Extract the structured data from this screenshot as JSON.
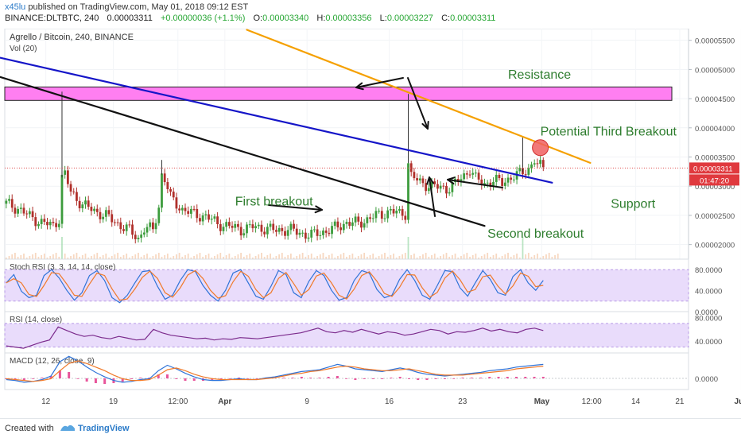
{
  "header": {
    "author": "x45lu",
    "published": "published on TradingView.com, May 01, 2018 09:12 EST",
    "symbol": "BINANCE:DLTBTC, 240",
    "last": "0.00003311",
    "change": "+0.00000036 (+1.1%)",
    "o_label": "O:",
    "o_value": "0.00003340",
    "h_label": "H:",
    "h_value": "0.00003356",
    "l_label": "L:",
    "l_value": "0.00003227",
    "c_label": "C:",
    "c_value": "0.00003311"
  },
  "footer": {
    "made": "Created with",
    "brand": "TradingView"
  },
  "chart_data": {
    "type": "candlestick",
    "title": "Agrello / Bitcoin, 240, BINANCE",
    "volume_label": "Vol (20)",
    "y_ticks": [
      "0.00005500",
      "0.00005000",
      "0.00004500",
      "0.00004000",
      "0.00003500",
      "0.00003000",
      "0.00002500",
      "0.00002000"
    ],
    "y_range": [
      1.75e-05,
      5.7e-05
    ],
    "price_tag": "0.00003311",
    "time_tag": "01:47:20",
    "last_price": 3.311e-05,
    "x_ticks": [
      "12",
      "19",
      "12:00",
      "Apr",
      "9",
      "16",
      "23",
      "May",
      "12:00",
      "14",
      "21",
      "Jun"
    ],
    "close_path": [
      [
        0,
        2.7e-05
      ],
      [
        4,
        2.62e-05
      ],
      [
        8,
        2.48e-05
      ],
      [
        12,
        2.38e-05
      ],
      [
        16,
        2.32e-05
      ],
      [
        18,
        2.45e-05
      ],
      [
        19,
        3.15e-05
      ],
      [
        20,
        3.2e-05
      ],
      [
        22,
        2.9e-05
      ],
      [
        26,
        2.68e-05
      ],
      [
        30,
        2.58e-05
      ],
      [
        34,
        2.49e-05
      ],
      [
        38,
        2.36e-05
      ],
      [
        42,
        2.24e-05
      ],
      [
        45,
        2.1e-05
      ],
      [
        47,
        2.28e-05
      ],
      [
        50,
        2.25e-05
      ],
      [
        52,
        2.65e-05
      ],
      [
        53,
        3.2e-05
      ],
      [
        54,
        3.12e-05
      ],
      [
        56,
        2.8e-05
      ],
      [
        60,
        2.6e-05
      ],
      [
        64,
        2.52e-05
      ],
      [
        68,
        2.48e-05
      ],
      [
        72,
        2.36e-05
      ],
      [
        76,
        2.31e-05
      ],
      [
        80,
        2.26e-05
      ],
      [
        84,
        2.3e-05
      ],
      [
        88,
        2.28e-05
      ],
      [
        92,
        2.24e-05
      ],
      [
        96,
        2.26e-05
      ],
      [
        100,
        2.2e-05
      ],
      [
        104,
        2.16e-05
      ],
      [
        108,
        2.22e-05
      ],
      [
        112,
        2.28e-05
      ],
      [
        116,
        2.38e-05
      ],
      [
        120,
        2.36e-05
      ],
      [
        124,
        2.46e-05
      ],
      [
        128,
        2.52e-05
      ],
      [
        131,
        2.58e-05
      ],
      [
        134,
        2.52e-05
      ],
      [
        136,
        2.54e-05
      ],
      [
        137,
        3.4e-05
      ],
      [
        138,
        3.18e-05
      ],
      [
        141,
        3.06e-05
      ],
      [
        144,
        3.02e-05
      ],
      [
        147,
        2.98e-05
      ],
      [
        150,
        2.96e-05
      ],
      [
        153,
        3.04e-05
      ],
      [
        156,
        3.18e-05
      ],
      [
        158,
        3.3e-05
      ],
      [
        160,
        3.12e-05
      ],
      [
        163,
        3.04e-05
      ],
      [
        166,
        3.1e-05
      ],
      [
        169,
        3.06e-05
      ],
      [
        172,
        3.16e-05
      ],
      [
        174,
        3.18e-05
      ],
      [
        176,
        3.24e-05
      ],
      [
        178,
        3.3e-05
      ],
      [
        180,
        3.45e-05
      ],
      [
        181,
        3.35e-05
      ],
      [
        183,
        3.32e-05
      ]
    ],
    "spikes": [
      [
        19,
        4.62e-05
      ],
      [
        53,
        3.45e-05
      ],
      [
        137,
        4.58e-05
      ],
      [
        176,
        3.86e-05
      ]
    ],
    "volume_spikes": [
      19,
      137,
      176
    ],
    "zone": {
      "label": "resistance-zone",
      "y_top": 4.7e-05,
      "y_bottom": 4.47e-05,
      "color": "#ff7ff1"
    },
    "lines": [
      {
        "name": "blue-trendline",
        "color": "#1515c8",
        "from": [
          -2,
          5.2e-05
        ],
        "to": [
          186,
          3.06e-05
        ]
      },
      {
        "name": "black-trendline",
        "color": "#111111",
        "from": [
          -2,
          4.87e-05
        ],
        "to": [
          163,
          2.32e-05
        ]
      },
      {
        "name": "orange-trendline",
        "color": "#f5a000",
        "from": [
          82,
          5.68e-05
        ],
        "to": [
          199,
          3.4e-05
        ]
      }
    ],
    "marker": {
      "x": 182,
      "y": 3.66e-05,
      "color": "#f06060"
    },
    "annotations": [
      {
        "text": "Resistance",
        "x": 171,
        "y": 4.84e-05
      },
      {
        "text": "Potential Third Breakout",
        "x": 182,
        "y": 3.87e-05
      },
      {
        "text": "First breakout",
        "x": 78,
        "y": 2.67e-05
      },
      {
        "text": "Support",
        "x": 206,
        "y": 2.63e-05
      },
      {
        "text": "Second breakout",
        "x": 164,
        "y": 2.12e-05
      }
    ],
    "indicators": {
      "stoch": {
        "label": "Stoch RSI (3, 3, 14, 14, close)",
        "ticks": [
          "80.0000",
          "40.0000",
          "0.0000"
        ],
        "band": [
          80,
          20
        ],
        "k": [
          55,
          72,
          38,
          25,
          30,
          70,
          82,
          65,
          40,
          20,
          35,
          70,
          80,
          60,
          25,
          15,
          30,
          55,
          78,
          80,
          48,
          22,
          30,
          60,
          82,
          78,
          50,
          30,
          18,
          40,
          75,
          82,
          55,
          28,
          22,
          48,
          80,
          72,
          35,
          25,
          58,
          80,
          70,
          40,
          20,
          25,
          60,
          80,
          75,
          42,
          25,
          30,
          62,
          82,
          60,
          30,
          22,
          50,
          80,
          78,
          45,
          28,
          55,
          80,
          62,
          35,
          30,
          68,
          82,
          55,
          40,
          60
        ]
      },
      "rsi": {
        "label": "RSI (14, close)",
        "ticks": [
          "80.0000",
          "40.0000"
        ],
        "band": [
          70,
          30
        ],
        "values": [
          32,
          30,
          28,
          33,
          38,
          42,
          64,
          58,
          52,
          48,
          50,
          46,
          44,
          48,
          45,
          42,
          43,
          60,
          54,
          50,
          48,
          46,
          44,
          45,
          42,
          44,
          43,
          46,
          45,
          44,
          46,
          48,
          50,
          52,
          54,
          58,
          62,
          56,
          54,
          58,
          55,
          60,
          56,
          52,
          56,
          54,
          50,
          52,
          56,
          60,
          58,
          52,
          56,
          55,
          58,
          62,
          57,
          60,
          56,
          54,
          60,
          62,
          58
        ]
      },
      "macd": {
        "label": "MACD (12, 26, close, 9)",
        "ticks": [
          "0.0000"
        ],
        "macd_line": [
          -0.2,
          -0.3,
          -0.5,
          -0.4,
          -0.2,
          0.2,
          1.8,
          2.4,
          1.9,
          1.2,
          0.6,
          0.1,
          -0.3,
          -0.5,
          -0.4,
          -0.2,
          -0.1,
          0.8,
          1.4,
          1.0,
          0.5,
          0.1,
          -0.2,
          -0.3,
          -0.3,
          -0.2,
          -0.1,
          -0.2,
          -0.2,
          0.0,
          0.1,
          0.3,
          0.5,
          0.7,
          0.8,
          0.9,
          1.2,
          1.5,
          1.3,
          1.0,
          0.9,
          0.8,
          0.7,
          0.9,
          1.1,
          0.9,
          0.6,
          0.4,
          0.3,
          0.2,
          0.3,
          0.4,
          0.5,
          0.6,
          0.8,
          0.9,
          1.0,
          1.2,
          1.3,
          1.4,
          1.5
        ],
        "signal_line": [
          -0.1,
          -0.2,
          -0.3,
          -0.4,
          -0.3,
          -0.1,
          0.8,
          1.6,
          1.9,
          1.6,
          1.2,
          0.8,
          0.3,
          -0.1,
          -0.3,
          -0.3,
          -0.2,
          0.3,
          0.9,
          1.1,
          0.8,
          0.4,
          0.1,
          -0.1,
          -0.2,
          -0.2,
          -0.2,
          -0.2,
          -0.2,
          -0.1,
          0.0,
          0.2,
          0.4,
          0.5,
          0.7,
          0.8,
          1.0,
          1.2,
          1.3,
          1.2,
          1.0,
          0.9,
          0.8,
          0.8,
          0.9,
          1.0,
          0.8,
          0.6,
          0.4,
          0.3,
          0.3,
          0.3,
          0.4,
          0.5,
          0.6,
          0.7,
          0.8,
          1.0,
          1.1,
          1.2,
          1.3
        ]
      }
    }
  }
}
